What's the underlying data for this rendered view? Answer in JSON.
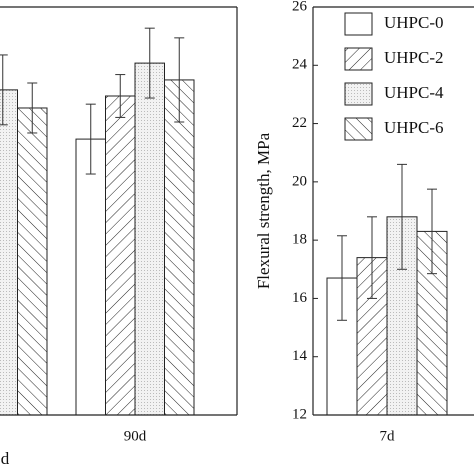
{
  "chart_data": [
    {
      "type": "bar",
      "xlabel": "d",
      "categories": [
        null,
        "90d"
      ],
      "ylim": [
        0,
        160
      ],
      "series": [
        {
          "color": "#ffffff",
          "pattern": "none",
          "values": [
            null,
            108.2
          ],
          "errors": [
            null,
            13.7
          ]
        },
        {
          "color": "#ffffff",
          "pattern": "hatch-right",
          "values": [
            null,
            125.1
          ],
          "errors": [
            null,
            8.4
          ]
        },
        {
          "color": "#f2f2f2",
          "pattern": "dots",
          "values": [
            127.5,
            138
          ],
          "errors": [
            13.7,
            13.7
          ]
        },
        {
          "color": "#ffffff",
          "pattern": "hatch-left",
          "values": [
            120.4,
            131.4
          ],
          "errors": [
            9.8,
            16.5
          ]
        }
      ]
    },
    {
      "type": "bar",
      "ylabel": "Flexural strength, MPa",
      "categories": [
        "7d"
      ],
      "ylim": [
        12,
        26
      ],
      "yticks": [
        12,
        14,
        16,
        18,
        20,
        22,
        24,
        26
      ],
      "series": [
        {
          "name": "UHPC-0",
          "color": "#ffffff",
          "pattern": "none",
          "values": [
            16.7
          ],
          "errors": [
            1.45
          ]
        },
        {
          "name": "UHPC-2",
          "color": "#ffffff",
          "pattern": "hatch-right",
          "values": [
            17.4
          ],
          "errors": [
            1.4
          ]
        },
        {
          "name": "UHPC-4",
          "color": "#f2f2f2",
          "pattern": "dots",
          "values": [
            18.8
          ],
          "errors": [
            1.8
          ]
        },
        {
          "name": "UHPC-6",
          "color": "#ffffff",
          "pattern": "hatch-left",
          "values": [
            18.3
          ],
          "errors": [
            1.45
          ]
        }
      ]
    }
  ]
}
